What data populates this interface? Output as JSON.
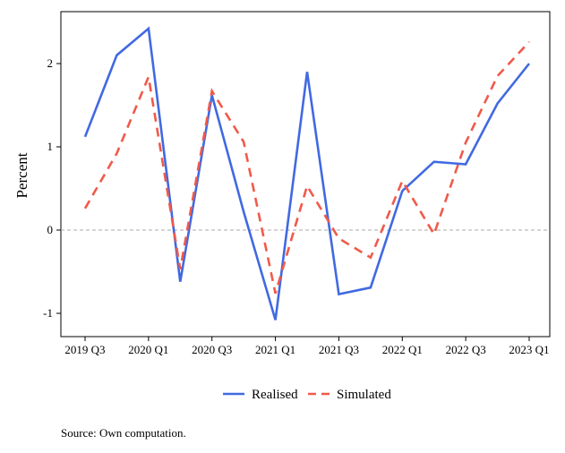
{
  "chart_data": {
    "type": "line",
    "title": "",
    "xlabel": "",
    "ylabel": "Percent",
    "categories": [
      "2019 Q3",
      "2019 Q4",
      "2020 Q1",
      "2020 Q2",
      "2020 Q3",
      "2020 Q4",
      "2021 Q1",
      "2021 Q2",
      "2021 Q3",
      "2021 Q4",
      "2022 Q1",
      "2022 Q2",
      "2022 Q3",
      "2022 Q4",
      "2023 Q1"
    ],
    "tick_labels": [
      "2019 Q3",
      "2020 Q1",
      "2020 Q3",
      "2021 Q1",
      "2021 Q3",
      "2022 Q1",
      "2022 Q3",
      "2023 Q1"
    ],
    "yticks": [
      -1,
      0,
      1,
      2
    ],
    "ylim": [
      -1.25,
      2.6
    ],
    "zero_line": true,
    "series": [
      {
        "name": "Realised",
        "color": "#4169E1",
        "dash": "solid",
        "values": [
          1.12,
          2.1,
          2.42,
          -0.62,
          1.62,
          0.22,
          -1.08,
          1.9,
          -0.77,
          -0.69,
          0.47,
          0.82,
          0.79,
          1.52,
          2.0
        ]
      },
      {
        "name": "Simulated",
        "color": "#F05A4A",
        "dash": "dashed",
        "values": [
          0.26,
          0.92,
          1.84,
          -0.47,
          1.67,
          1.06,
          -0.76,
          0.53,
          -0.1,
          -0.33,
          0.59,
          -0.05,
          1.05,
          1.85,
          2.26
        ]
      }
    ],
    "legend_position": "bottom",
    "grid": false
  },
  "source_note": "Source: Own computation."
}
